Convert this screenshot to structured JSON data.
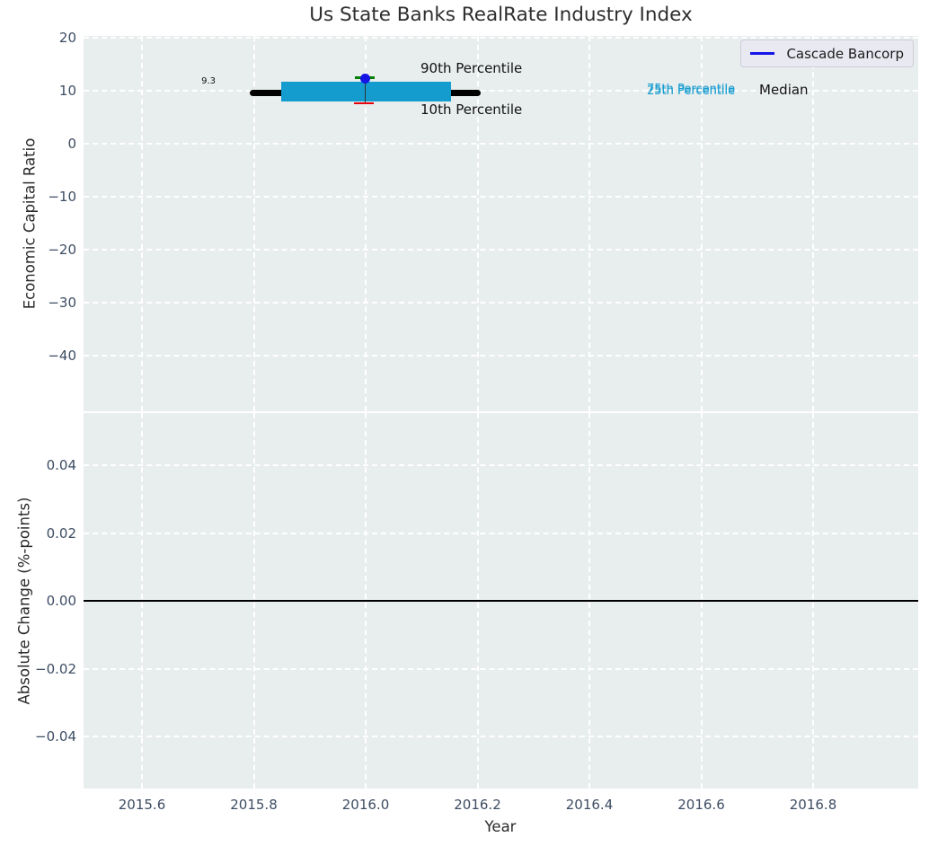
{
  "title": "Us State Banks RealRate Industry Index",
  "legend": {
    "label": "Cascade Bancorp"
  },
  "top": {
    "ylabel": "Economic Capital Ratio",
    "yticks": [
      "20",
      "10",
      "0",
      "−10",
      "−20",
      "−30",
      "−40"
    ],
    "labels": {
      "p90": "90th Percentile",
      "p10": "10th Percentile",
      "p75": "75th Percentile",
      "p25": "25th Percentile",
      "median": "Median",
      "median_value": "9.3"
    }
  },
  "bottom": {
    "ylabel": "Absolute Change (%-points)",
    "yticks": [
      "0.04",
      "0.02",
      "0.00",
      "−0.02",
      "−0.04"
    ]
  },
  "xaxis": {
    "label": "Year",
    "ticks": [
      "2015.6",
      "2015.8",
      "2016.0",
      "2016.2",
      "2016.4",
      "2016.6",
      "2016.8"
    ]
  },
  "colors": {
    "axes_background": "#e8edee",
    "grid": "#ffffff",
    "median_line": "#000000",
    "iqr_box": "#149ccf",
    "p90_marker": "#008000",
    "p10_marker": "#e8000b",
    "company_point": "#1414e6",
    "tick_label": "#3d4d63"
  },
  "chart_data": [
    {
      "type": "box",
      "title": "Us State Banks RealRate Industry Index",
      "ylabel": "Economic Capital Ratio",
      "ylim": [
        -50.3,
        20.3
      ],
      "yticks": [
        20,
        10,
        0,
        -10,
        -20,
        -30,
        -40
      ],
      "xlim": [
        2015.49,
        2016.99
      ],
      "grid": true,
      "legend_position": "upper right",
      "legend": [
        "Cascade Bancorp"
      ],
      "series": [
        {
          "name": "Cascade Bancorp",
          "style": "point",
          "color": "#1414e6",
          "x": [
            2016.0
          ],
          "y": [
            12.1
          ]
        }
      ],
      "percentiles_at_2016": {
        "p10": 7.5,
        "p25": 8.0,
        "median": 9.3,
        "p75": 11.1,
        "p90": 12.1
      },
      "median_line": {
        "value": 9.3,
        "x_span": [
          2015.8,
          2016.2
        ],
        "label": "9.3",
        "color": "#000000"
      },
      "iqr_box": {
        "x_span": [
          2015.85,
          2016.15
        ],
        "y_span": [
          8.0,
          11.1
        ],
        "color": "#149ccf"
      },
      "whisker": {
        "x": 2016.0,
        "y_span": [
          7.5,
          12.1
        ]
      },
      "annotations": [
        "90th Percentile",
        "10th Percentile",
        "75th Percentile",
        "25th Percentile",
        "Median",
        "9.3"
      ]
    },
    {
      "type": "line",
      "ylabel": "Absolute Change (%-points)",
      "ylim": [
        -0.0555,
        0.0555
      ],
      "yticks": [
        0.04,
        0.02,
        0.0,
        -0.02,
        -0.04
      ],
      "xlabel": "Year",
      "xticks": [
        2015.6,
        2015.8,
        2016.0,
        2016.2,
        2016.4,
        2016.6,
        2016.8
      ],
      "xlim": [
        2015.49,
        2016.99
      ],
      "grid": true,
      "zero_line": 0.0,
      "series": []
    }
  ]
}
